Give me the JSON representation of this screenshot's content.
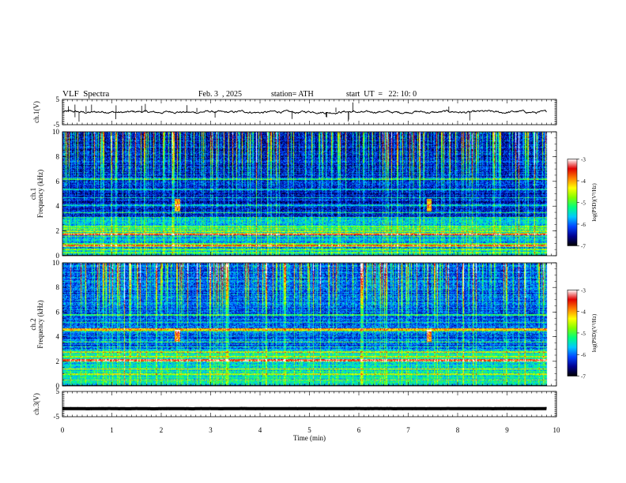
{
  "header": {
    "title": "VLF  Spectra",
    "date": "Feb. 3  , 2025",
    "station": "station= ATH",
    "start_ut": "start  UT  =   22: 10: 0"
  },
  "chart_data": [
    {
      "type": "line",
      "name": "ch1-waveform",
      "ylabel": "ch.1(V)",
      "ylim": [
        -5,
        5
      ],
      "yticks": [
        "5",
        "-5"
      ],
      "xlim": [
        0,
        10
      ],
      "trace_level": 0,
      "trace_noise": 0.6,
      "data_extent_min": 9.8,
      "line_color": "#000000"
    },
    {
      "type": "heatmap",
      "name": "ch1-spectrogram",
      "ylabel": "ch.1\nFrequency (kHz)",
      "ylim": [
        0,
        10
      ],
      "yticks": [
        "0",
        "2",
        "4",
        "6",
        "8",
        "10"
      ],
      "xlim": [
        0,
        10
      ],
      "data_extent_min": 9.8,
      "colorbar": {
        "label": "log(PSD)(V²/Hz)",
        "range": [
          -7,
          -3
        ],
        "ticks": [
          "-3",
          "-4",
          "-5",
          "-6",
          "-7"
        ],
        "colors": [
          "#000000",
          "#00008f",
          "#0044ff",
          "#00c8ff",
          "#00ff7f",
          "#80ff00",
          "#ffff00",
          "#ff8000",
          "#e00000",
          "#ffffff"
        ]
      },
      "features": {
        "noise_floor_logpsd": -6.4,
        "lines_kHz": [
          0.3,
          0.55,
          0.8,
          1.0,
          1.6,
          1.8,
          2.0,
          2.2,
          2.4,
          3.1,
          3.5,
          4.1,
          4.7,
          5.4,
          6.2
        ],
        "bright_lines_kHz": [
          0.85,
          1.75
        ],
        "bursts_min": [
          2.32,
          7.42
        ],
        "burst_band_kHz": [
          3.6,
          4.6
        ]
      }
    },
    {
      "type": "heatmap",
      "name": "ch2-spectrogram",
      "ylabel": "ch.2\nFrequency (kHz)",
      "ylim": [
        0,
        10
      ],
      "yticks": [
        "0",
        "2",
        "4",
        "6",
        "8",
        "10"
      ],
      "xlim": [
        0,
        10
      ],
      "data_extent_min": 9.8,
      "colorbar": {
        "label": "log(PSD)(V²/Hz)",
        "range": [
          -7,
          -3
        ],
        "ticks": [
          "-3",
          "-4",
          "-5",
          "-6",
          "-7"
        ],
        "colors": [
          "#000000",
          "#00008f",
          "#0044ff",
          "#00c8ff",
          "#00ff7f",
          "#80ff00",
          "#ffff00",
          "#ff8000",
          "#e00000",
          "#ffffff"
        ]
      },
      "features": {
        "noise_floor_logpsd": -6.1,
        "lines_kHz": [
          0.5,
          1.0,
          1.4,
          2.4,
          2.8,
          3.2,
          3.6,
          4.5,
          5.2,
          5.8
        ],
        "bright_lines_kHz": [
          2.1,
          4.6
        ],
        "bursts_min": [
          2.32,
          7.42
        ],
        "burst_band_kHz": [
          3.6,
          4.6
        ]
      }
    },
    {
      "type": "line",
      "name": "ch3-waveform",
      "ylabel": "ch.3(V)",
      "ylim": [
        -5,
        5
      ],
      "yticks": [
        "5",
        "-5"
      ],
      "xlim": [
        0,
        10
      ],
      "xlabel": "Time  (min)",
      "xticks": [
        "0",
        "1",
        "2",
        "3",
        "4",
        "5",
        "6",
        "7",
        "8",
        "9",
        "10"
      ],
      "trace_level": -1.8,
      "trace_noise": 0.05,
      "data_extent_min": 9.8,
      "line_color": "#000000"
    }
  ]
}
